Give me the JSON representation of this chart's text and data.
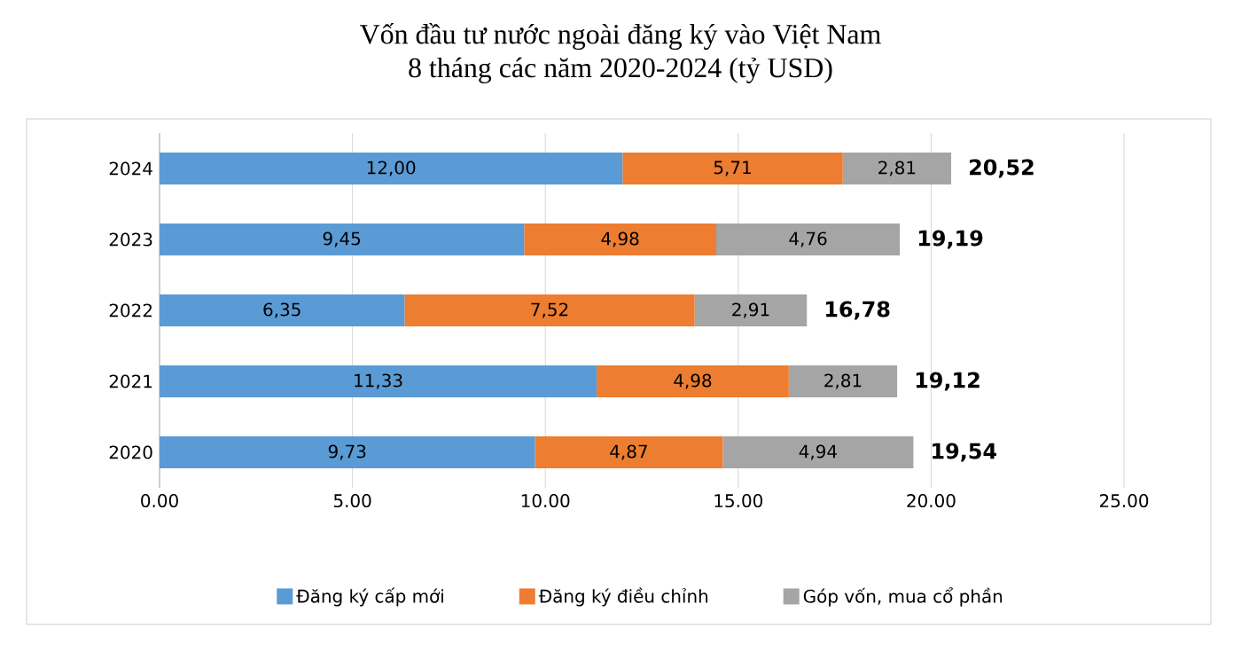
{
  "chart_data": {
    "type": "bar",
    "orientation": "horizontal",
    "stacked": true,
    "title": "Vốn đầu tư nước ngoài đăng ký vào Việt Nam\n8 tháng các năm 2020-2024 (tỷ USD)",
    "categories": [
      "2024",
      "2023",
      "2022",
      "2021",
      "2020"
    ],
    "series": [
      {
        "name": "Đăng ký cấp mới",
        "color": "#5b9bd5",
        "values": [
          12.0,
          9.45,
          6.35,
          11.33,
          9.73
        ],
        "value_labels": [
          "12,00",
          "9,45",
          "6,35",
          "11,33",
          "9,73"
        ]
      },
      {
        "name": "Đăng ký điều chỉnh",
        "color": "#ed7d31",
        "values": [
          5.71,
          4.98,
          7.52,
          4.98,
          4.87
        ],
        "value_labels": [
          "5,71",
          "4,98",
          "7,52",
          "4,98",
          "4,87"
        ]
      },
      {
        "name": "Góp vốn, mua cổ phần",
        "color": "#a5a5a5",
        "values": [
          2.81,
          4.76,
          2.91,
          2.81,
          4.94
        ],
        "value_labels": [
          "2,81",
          "4,76",
          "2,91",
          "2,81",
          "4,94"
        ]
      }
    ],
    "totals": [
      "20,52",
      "19,19",
      "16,78",
      "19,12",
      "19,54"
    ],
    "xlim": [
      0,
      25
    ],
    "xticks": [
      {
        "value": 0,
        "label": "0.00"
      },
      {
        "value": 5,
        "label": "5.00"
      },
      {
        "value": 10,
        "label": "10.00"
      },
      {
        "value": 15,
        "label": "15.00"
      },
      {
        "value": 20,
        "label": "20.00"
      },
      {
        "value": 25,
        "label": "25.00"
      }
    ],
    "grid": "x",
    "legend": "bottom"
  }
}
